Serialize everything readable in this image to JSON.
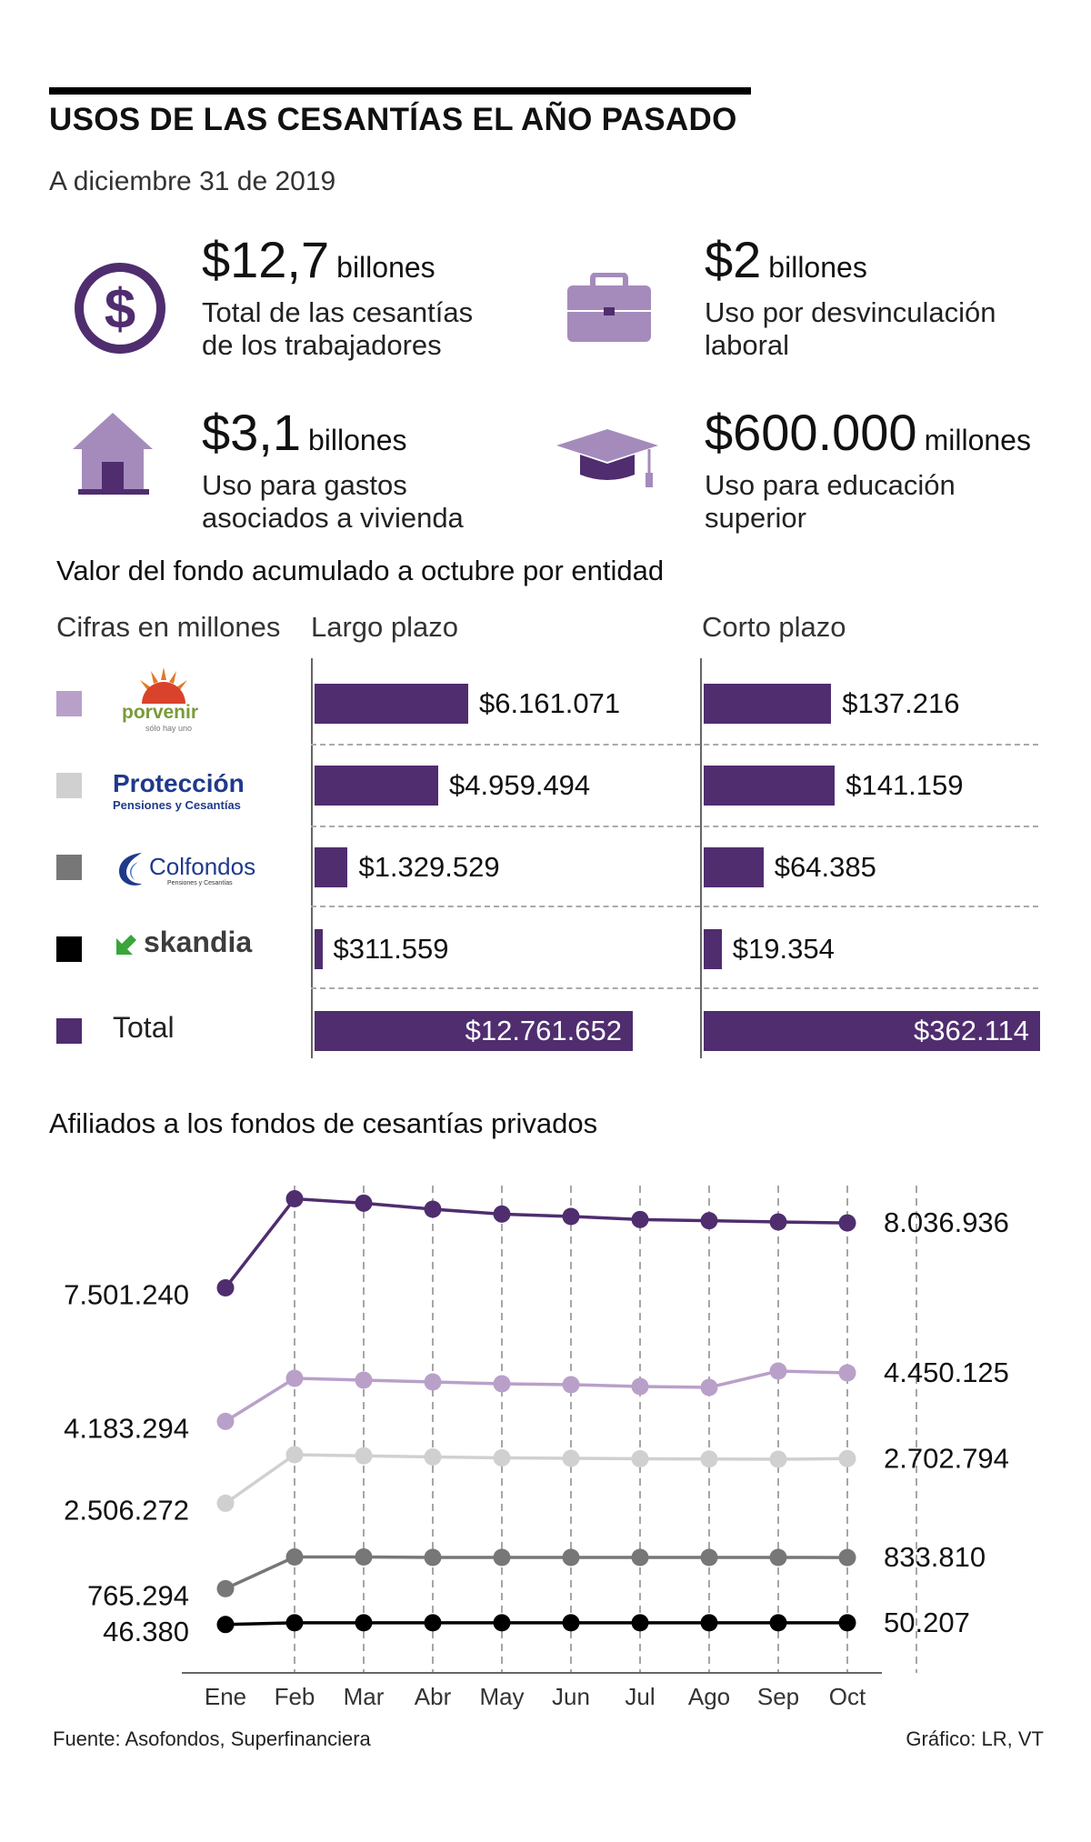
{
  "header": {
    "title": "USOS DE LAS CESANTÍAS EL AÑO PASADO",
    "subtitle": "A diciembre 31 de 2019"
  },
  "stats": [
    {
      "value": "$12,7",
      "unit": "billones",
      "desc1": "Total de las cesantías",
      "desc2": "de los trabajadores",
      "icon": "dollar-coin-icon"
    },
    {
      "value": "$2",
      "unit": "billones",
      "desc1": "Uso por desvinculación",
      "desc2": "laboral",
      "icon": "briefcase-icon"
    },
    {
      "value": "$3,1",
      "unit": "billones",
      "desc1": "Uso para gastos",
      "desc2": "asociados a vivienda",
      "icon": "house-icon"
    },
    {
      "value": "$600.000",
      "unit": "millones",
      "desc1": "Uso para educación",
      "desc2": "superior",
      "icon": "graduation-cap-icon"
    }
  ],
  "colors": {
    "accent": "#4f2d6f",
    "porvenir": "#b9a0c9",
    "proteccion": "#d0d0d0",
    "colfondos": "#777777",
    "skandia": "#000000",
    "total": "#4f2d6f",
    "icon_light": "#a58bbb"
  },
  "bars_section": {
    "title": "Valor del fondo acumulado a octubre por entidad",
    "units_label": "Cifras en millones",
    "col_long": "Largo plazo",
    "col_short": "Corto plazo",
    "logos": {
      "porvenir": "porvenir",
      "porvenir_tag": "sólo hay uno",
      "proteccion": "Protección",
      "proteccion_tag": "Pensiones y Cesantías",
      "colfondos": "Colfondos",
      "colfondos_tag": "Pensiones y Cesantías",
      "skandia": "skandia"
    },
    "total_label": "Total"
  },
  "line_section": {
    "title": "Afiliados a los fondos de cesantías privados",
    "source": "Fuente: Asofondos, Superfinanciera",
    "credit": "Gráfico: LR, VT"
  },
  "chart_data": [
    {
      "type": "bar",
      "title": "Valor del fondo acumulado a octubre por entidad",
      "orientation": "horizontal",
      "categories": [
        "Porvenir",
        "Protección",
        "Colfondos",
        "Skandia",
        "Total"
      ],
      "series": [
        {
          "name": "Largo plazo",
          "values": [
            6161071,
            4959494,
            1329529,
            311559,
            12761652
          ],
          "labels": [
            "$6.161.071",
            "$4.959.494",
            "$1.329.529",
            "$311.559",
            "$12.761.652"
          ]
        },
        {
          "name": "Corto plazo",
          "values": [
            137216,
            141159,
            64385,
            19354,
            362114
          ],
          "labels": [
            "$137.216",
            "$141.159",
            "$64.385",
            "$19.354",
            "$362.114"
          ]
        }
      ]
    },
    {
      "type": "line",
      "title": "Afiliados a los fondos de cesantías privados",
      "categories": [
        "Ene",
        "Feb",
        "Mar",
        "Abr",
        "May",
        "Jun",
        "Jul",
        "Ago",
        "Sep",
        "Oct"
      ],
      "ylim": [
        0,
        8200000
      ],
      "grid": "vertical dashed",
      "series": [
        {
          "color": "#4f2d6f",
          "values": [
            7501240,
            8236000,
            8200000,
            8150000,
            8110000,
            8090000,
            8065000,
            8055000,
            8045000,
            8036936
          ],
          "start_label": "7.501.240",
          "end_label": "8.036.936"
        },
        {
          "color": "#b9a0c9",
          "values": [
            4183294,
            4420000,
            4410000,
            4400000,
            4390000,
            4385000,
            4375000,
            4370000,
            4460000,
            4450125
          ],
          "start_label": "4.183.294",
          "end_label": "4.450.125"
        },
        {
          "color": "#d0d0d0",
          "values": [
            2506272,
            2720000,
            2715000,
            2710000,
            2706000,
            2704000,
            2702000,
            2701000,
            2700000,
            2702794
          ],
          "start_label": "2.506.272",
          "end_label": "2.702.794"
        },
        {
          "color": "#777777",
          "values": [
            765294,
            835000,
            835000,
            834000,
            834000,
            834000,
            834000,
            834000,
            834000,
            833810
          ],
          "start_label": "765.294",
          "end_label": "833.810"
        },
        {
          "color": "#000000",
          "values": [
            46380,
            50200,
            50200,
            50200,
            50200,
            50200,
            50200,
            50200,
            50200,
            50207
          ],
          "start_label": "46.380",
          "end_label": "50.207"
        }
      ]
    }
  ]
}
